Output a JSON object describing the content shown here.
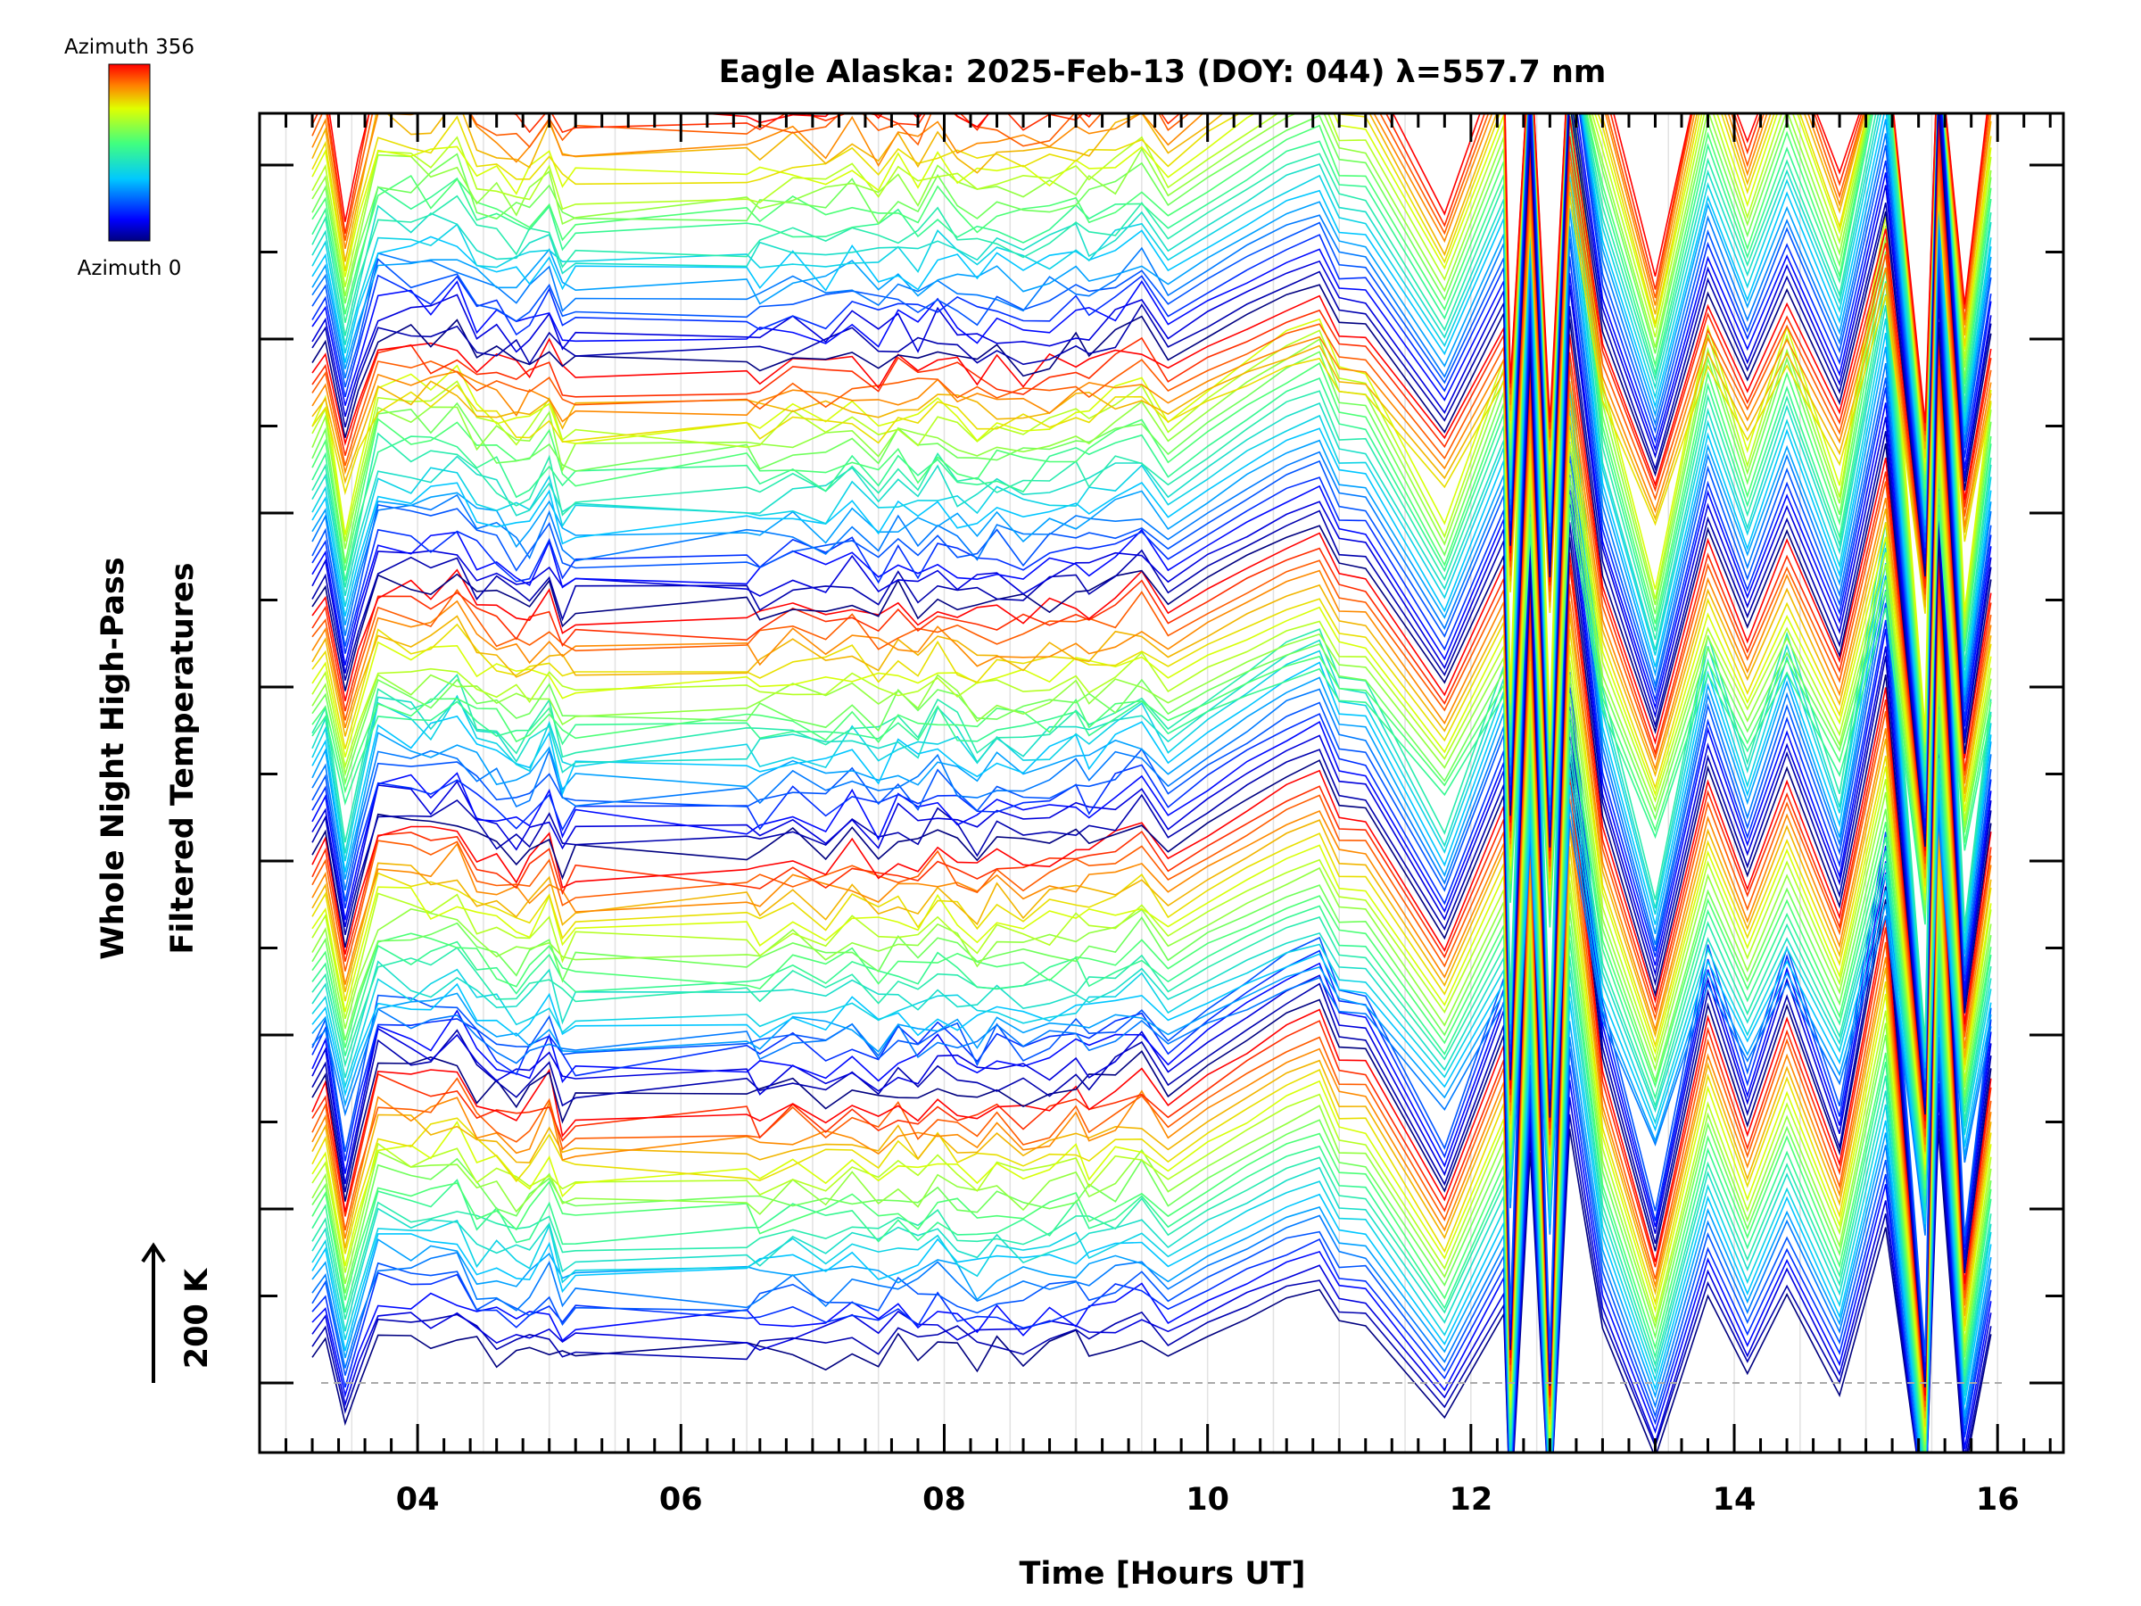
{
  "chart_data": {
    "type": "line",
    "title": "Eagle Alaska: 2025-Feb-13 (DOY: 044) λ=557.7 nm",
    "xlabel": "Time [Hours UT]",
    "ylabel_line1": "Whole Night High-Pass",
    "ylabel_line2": "Filtered Temperatures",
    "scale_label": "200 K",
    "colorbar": {
      "top_label": "Azimuth 356",
      "bottom_label": "Azimuth 0",
      "min": 0,
      "max": 356
    },
    "xlim": [
      2.8,
      16.5
    ],
    "xticks": [
      4,
      6,
      8,
      10,
      12,
      14,
      16
    ],
    "xtick_labels": [
      "04",
      "06",
      "08",
      "10",
      "12",
      "14",
      "16"
    ],
    "grid": "vertical-minor",
    "series_count": 120,
    "x": [
      3.2,
      3.3,
      3.45,
      3.55,
      3.7,
      3.95,
      4.1,
      4.3,
      4.45,
      4.6,
      4.75,
      4.85,
      5.0,
      5.1,
      5.2,
      6.5,
      6.6,
      6.85,
      7.1,
      7.3,
      7.5,
      7.65,
      7.8,
      7.95,
      8.1,
      8.25,
      8.4,
      8.6,
      8.8,
      9.0,
      9.1,
      9.3,
      9.5,
      9.7,
      10.0,
      10.3,
      10.6,
      10.85,
      11.0,
      11.2,
      11.8,
      12.25,
      12.3,
      12.45,
      12.6,
      12.75,
      13.0,
      13.4,
      13.8,
      14.1,
      14.4,
      14.8,
      15.15,
      15.45,
      15.55,
      15.75,
      15.95
    ],
    "shape": [
      0.35,
      0.7,
      -1.0,
      -0.2,
      0.9,
      0.8,
      0.75,
      0.95,
      0.5,
      0.45,
      0.3,
      0.35,
      0.7,
      0.2,
      0.3,
      0.35,
      0.3,
      0.5,
      0.35,
      0.6,
      0.3,
      0.55,
      0.35,
      0.65,
      0.45,
      0.3,
      0.5,
      0.35,
      0.45,
      0.6,
      0.5,
      0.65,
      0.9,
      0.4,
      0.8,
      1.15,
      1.5,
      1.7,
      1.05,
      1.0,
      -0.9,
      1.2,
      -3.0,
      4.5,
      -3.5,
      5.0,
      0.9,
      -1.7,
      1.6,
      0.0,
      1.6,
      -0.4,
      3.0,
      -3.5,
      5.0,
      -2.0,
      0.8
    ]
  }
}
